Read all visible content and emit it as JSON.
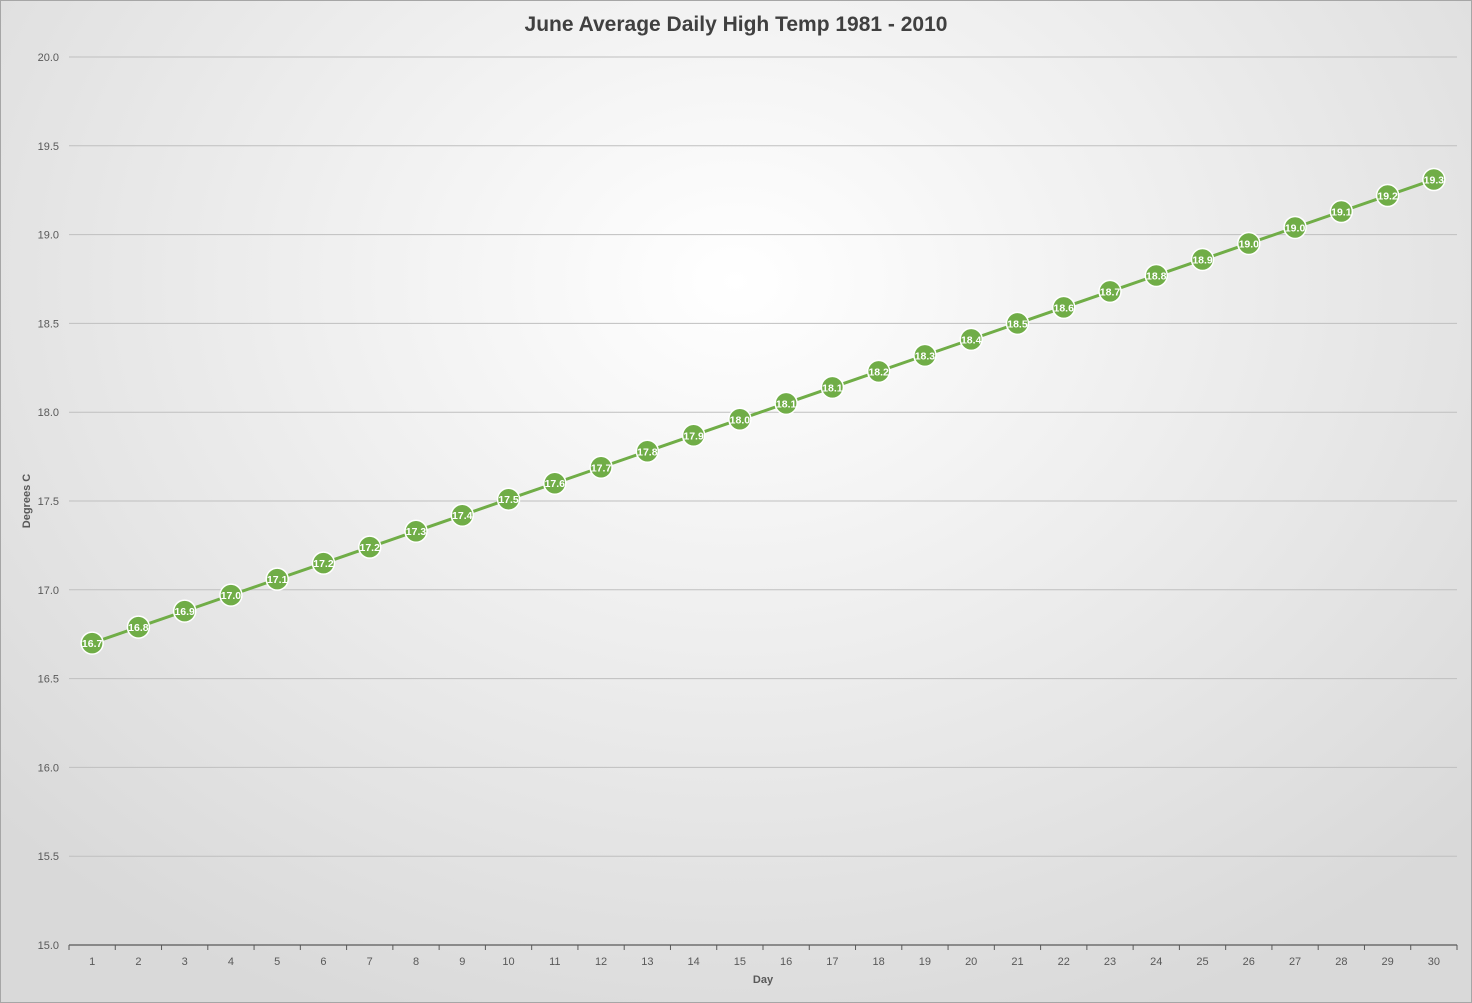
{
  "chart_data": {
    "type": "line",
    "title": "June Average Daily High Temp 1981 - 2010",
    "xlabel": "Day",
    "ylabel": "Degrees C",
    "ylim": [
      15.0,
      20.0
    ],
    "y_ticks": [
      "15.0",
      "15.5",
      "16.0",
      "16.5",
      "17.0",
      "17.5",
      "18.0",
      "18.5",
      "19.0",
      "19.5",
      "20.0"
    ],
    "categories": [
      "1",
      "2",
      "3",
      "4",
      "5",
      "6",
      "7",
      "8",
      "9",
      "10",
      "11",
      "12",
      "13",
      "14",
      "15",
      "16",
      "17",
      "18",
      "19",
      "20",
      "21",
      "22",
      "23",
      "24",
      "25",
      "26",
      "27",
      "28",
      "29",
      "30"
    ],
    "values": [
      16.7,
      16.79,
      16.88,
      16.97,
      17.06,
      17.15,
      17.24,
      17.33,
      17.42,
      17.51,
      17.6,
      17.69,
      17.78,
      17.87,
      17.96,
      18.05,
      18.14,
      18.23,
      18.32,
      18.41,
      18.5,
      18.59,
      18.68,
      18.77,
      18.86,
      18.95,
      19.04,
      19.13,
      19.22,
      19.31
    ],
    "data_labels": [
      "16.7",
      "16.8",
      "16.9",
      "17.0",
      "17.1",
      "17.2",
      "17.2",
      "17.3",
      "17.4",
      "17.5",
      "17.6",
      "17.7",
      "17.8",
      "17.9",
      "18.0",
      "18.1",
      "18.1",
      "18.2",
      "18.3",
      "18.4",
      "18.5",
      "18.6",
      "18.7",
      "18.8",
      "18.9",
      "19.0",
      "19.0",
      "19.1",
      "19.2",
      "19.3"
    ],
    "grid": true,
    "legend": "none",
    "colors": {
      "line": "#70ad47",
      "marker_fill": "#70ad47",
      "marker_stroke": "#ffffff",
      "data_label": "#ffffff",
      "gridline": "#bfbfbf",
      "axis": "#595959",
      "tick_label": "#595959",
      "title": "#404040"
    }
  }
}
